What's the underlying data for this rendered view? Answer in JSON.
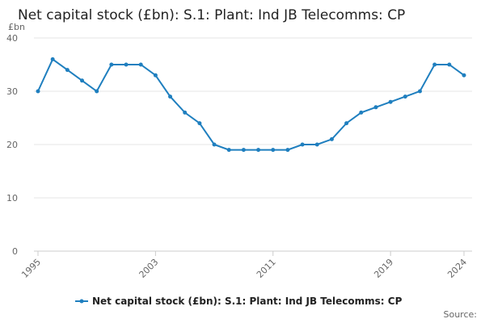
{
  "chart_data": {
    "type": "line",
    "title": "Net capital stock (£bn): S.1: Plant: Ind JB Telecomms: CP",
    "y_unit": "£bn",
    "source": "Source:",
    "x": [
      1995,
      1996,
      1997,
      1998,
      1999,
      2000,
      2001,
      2002,
      2003,
      2004,
      2005,
      2006,
      2007,
      2008,
      2009,
      2010,
      2011,
      2012,
      2013,
      2014,
      2015,
      2016,
      2017,
      2018,
      2019,
      2020,
      2021,
      2022,
      2023,
      2024
    ],
    "series": [
      {
        "name": "Net capital stock (£bn): S.1: Plant: Ind JB Telecomms: CP",
        "color": "#1f7fbf",
        "values": [
          30,
          36,
          34,
          32,
          30,
          35,
          35,
          35,
          33,
          29,
          26,
          24,
          20,
          19,
          19,
          19,
          19,
          19,
          20,
          20,
          21,
          24,
          26,
          27,
          28,
          29,
          30,
          35,
          35,
          33
        ]
      }
    ],
    "xlim": [
      1995,
      2024
    ],
    "xticks": [
      1995,
      2003,
      2011,
      2019,
      2024
    ],
    "ylim": [
      0,
      40
    ],
    "yticks": [
      0,
      10,
      20,
      30,
      40
    ],
    "grid": true
  }
}
